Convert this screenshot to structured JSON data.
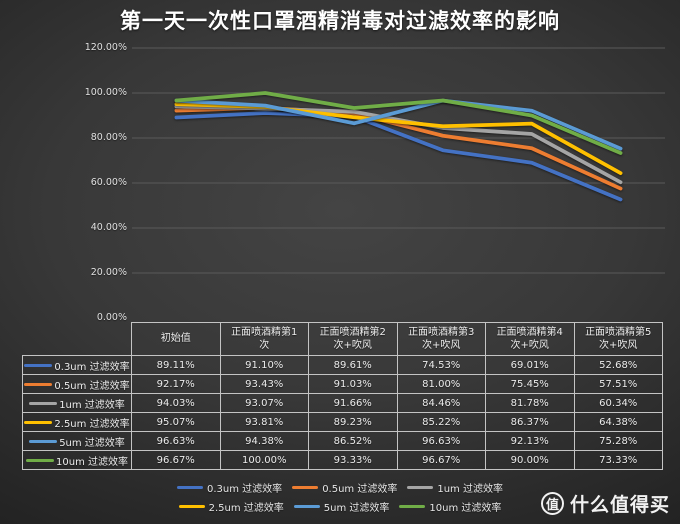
{
  "chart_data": {
    "type": "line",
    "title": "第一天一次性口罩酒精消毒对过滤效率的影响",
    "categories": [
      "初始值",
      "正面喷酒精第1\n次",
      "正面喷酒精第2\n次+吹风",
      "正面喷酒精第3\n次+吹风",
      "正面喷酒精第4\n次+吹风",
      "正面喷酒精第5\n次+吹风"
    ],
    "series": [
      {
        "name": "0.3um 过滤效率",
        "color": "#4472C4",
        "values": [
          89.11,
          91.1,
          89.61,
          74.53,
          69.01,
          52.68
        ]
      },
      {
        "name": "0.5um 过滤效率",
        "color": "#ED7D31",
        "values": [
          92.17,
          93.43,
          91.03,
          81.0,
          75.45,
          57.51
        ]
      },
      {
        "name": "1um 过滤效率",
        "color": "#A5A5A5",
        "values": [
          94.03,
          93.07,
          91.66,
          84.46,
          81.78,
          60.34
        ]
      },
      {
        "name": "2.5um 过滤效率",
        "color": "#FFC000",
        "values": [
          95.07,
          93.81,
          89.23,
          85.22,
          86.37,
          64.38
        ]
      },
      {
        "name": "5um 过滤效率",
        "color": "#5B9BD5",
        "values": [
          96.63,
          94.38,
          86.52,
          96.63,
          92.13,
          75.28
        ]
      },
      {
        "name": "10um 过滤效率",
        "color": "#70AD47",
        "values": [
          96.67,
          100.0,
          93.33,
          96.67,
          90.0,
          73.33
        ]
      }
    ],
    "y_ticks": [
      "120.00%",
      "100.00%",
      "80.00%",
      "60.00%",
      "40.00%",
      "20.00%",
      "0.00%"
    ],
    "ylim": [
      0,
      120
    ],
    "grid": true,
    "gridline_color": "#5a5a5a",
    "legend_position": "bottom",
    "value_suffix": "%",
    "table_corner_label": ""
  },
  "watermark": {
    "logo_char": "值",
    "text": "什么值得买"
  }
}
